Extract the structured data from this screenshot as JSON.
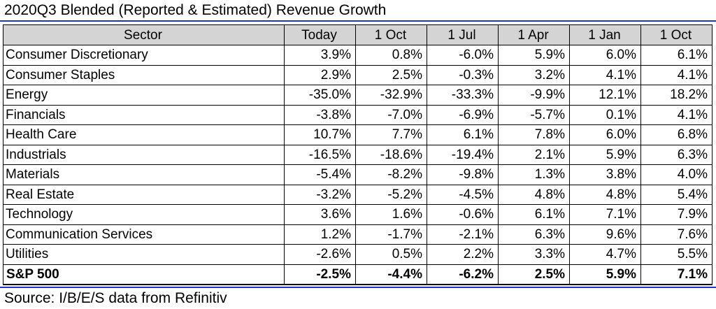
{
  "title": "2020Q3 Blended (Reported & Estimated) Revenue Growth",
  "table": {
    "headers": [
      "Sector",
      "Today",
      "1 Oct",
      "1 Jul",
      "1 Apr",
      "1 Jan",
      "1 Oct"
    ],
    "rows": [
      {
        "sector": "Consumer Discretionary",
        "values": [
          "3.9%",
          "0.8%",
          "-6.0%",
          "5.9%",
          "6.0%",
          "6.1%"
        ]
      },
      {
        "sector": "Consumer Staples",
        "values": [
          "2.9%",
          "2.5%",
          "-0.3%",
          "3.2%",
          "4.1%",
          "4.1%"
        ]
      },
      {
        "sector": "Energy",
        "values": [
          "-35.0%",
          "-32.9%",
          "-33.3%",
          "-9.9%",
          "12.1%",
          "18.2%"
        ]
      },
      {
        "sector": "Financials",
        "values": [
          "-3.8%",
          "-7.0%",
          "-6.9%",
          "-5.7%",
          "0.1%",
          "4.1%"
        ]
      },
      {
        "sector": "Health Care",
        "values": [
          "10.7%",
          "7.7%",
          "6.1%",
          "7.8%",
          "6.0%",
          "6.8%"
        ]
      },
      {
        "sector": "Industrials",
        "values": [
          "-16.5%",
          "-18.6%",
          "-19.4%",
          "2.1%",
          "5.9%",
          "6.3%"
        ]
      },
      {
        "sector": "Materials",
        "values": [
          "-5.4%",
          "-8.2%",
          "-9.8%",
          "1.3%",
          "3.8%",
          "4.0%"
        ]
      },
      {
        "sector": "Real Estate",
        "values": [
          "-3.2%",
          "-5.2%",
          "-4.5%",
          "4.8%",
          "4.8%",
          "5.4%"
        ]
      },
      {
        "sector": "Technology",
        "values": [
          "3.6%",
          "1.6%",
          "-0.6%",
          "6.1%",
          "7.1%",
          "7.9%"
        ]
      },
      {
        "sector": "Communication Services",
        "values": [
          "1.2%",
          "-1.7%",
          "-2.1%",
          "6.3%",
          "9.6%",
          "7.6%"
        ]
      },
      {
        "sector": "Utilities",
        "values": [
          "-2.6%",
          "0.5%",
          "2.2%",
          "3.3%",
          "4.7%",
          "5.5%"
        ]
      },
      {
        "sector": "S&P 500",
        "values": [
          "-2.5%",
          "-4.4%",
          "-6.2%",
          "2.5%",
          "5.9%",
          "7.1%"
        ],
        "total": true
      }
    ]
  },
  "source": "Source: I/B/E/S data from Refinitiv",
  "colors": {
    "rule": "#2233bb",
    "header_bg": "#d4d4d4",
    "border": "#000000"
  }
}
